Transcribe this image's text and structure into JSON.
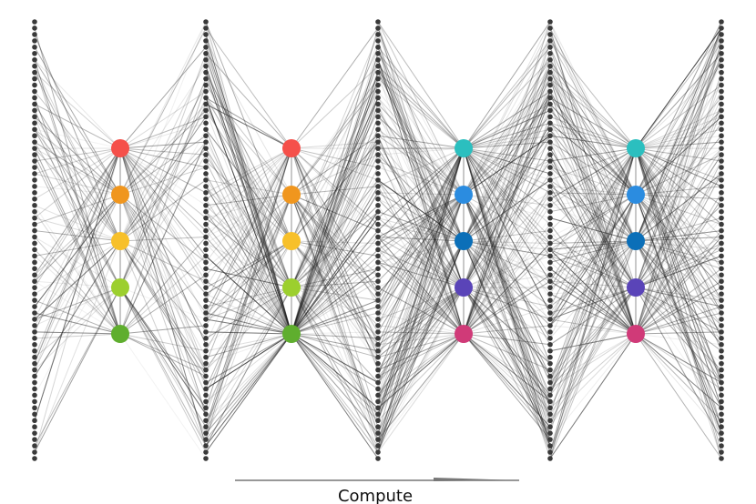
{
  "label": "Compute"
}
